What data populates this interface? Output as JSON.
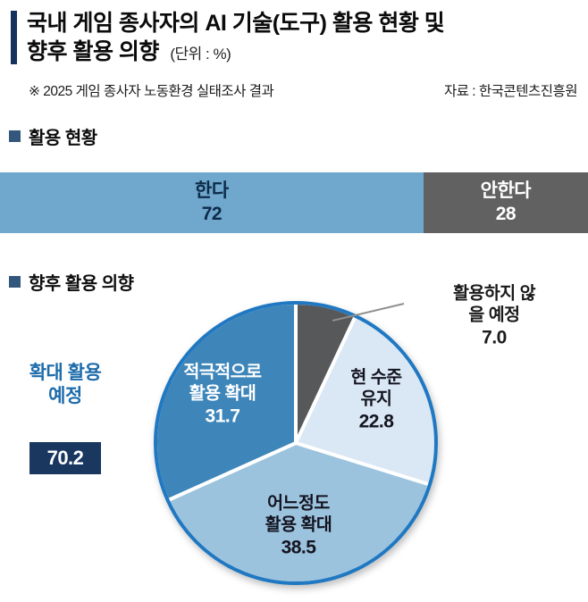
{
  "header": {
    "title_line1": "국내 게임 종사자의 AI 기술(도구) 활용 현황 및",
    "title_line2": "향후 활용 의향",
    "title_unit": "(단위 : %)",
    "note": "※ 2025 게임 종사자 노동환경 실태조사 결과",
    "source": "자료 : 한국콘텐츠진흥원",
    "accent_color": "#14325e"
  },
  "sections": {
    "usage": {
      "label": "활용 현황"
    },
    "intent": {
      "label": "향후 활용 의향"
    }
  },
  "chart_data": [
    {
      "type": "bar",
      "title": "활용 현황",
      "orientation": "horizontal_stacked",
      "unit": "%",
      "categories": [
        "한다",
        "안한다"
      ],
      "values": [
        72,
        28
      ],
      "value_labels": [
        "72",
        "28"
      ],
      "colors": [
        "#6fa7cd",
        "#616161"
      ],
      "xlim": [
        0,
        100
      ]
    },
    {
      "type": "pie",
      "title": "향후 활용 의향",
      "unit": "%",
      "labels": [
        "활용하지 않을 예정",
        "현 수준 유지",
        "어느정도 활용 확대",
        "적극적으로 활용 확대"
      ],
      "labels_display": [
        "활용하지 않을 예정",
        "현 수준\n유지",
        "어느정도\n활용 확대",
        "적극적으로\n활용 확대"
      ],
      "values": [
        7.0,
        22.8,
        38.5,
        31.7
      ],
      "value_labels": [
        "7.0",
        "22.8",
        "38.5",
        "31.7"
      ],
      "colors": [
        "#57585a",
        "#d9e8f4",
        "#9cc3de",
        "#3e86ba"
      ],
      "outline_color": "#1f78c1",
      "start_angle_deg": 0,
      "direction": "clockwise",
      "annotation": {
        "label": "확대 활용 예정",
        "label_display": "확대 활용\n예정",
        "value": 70.2,
        "value_label": "70.2",
        "label_color": "#1d6cab",
        "badge_color": "#1a3760"
      }
    }
  ]
}
